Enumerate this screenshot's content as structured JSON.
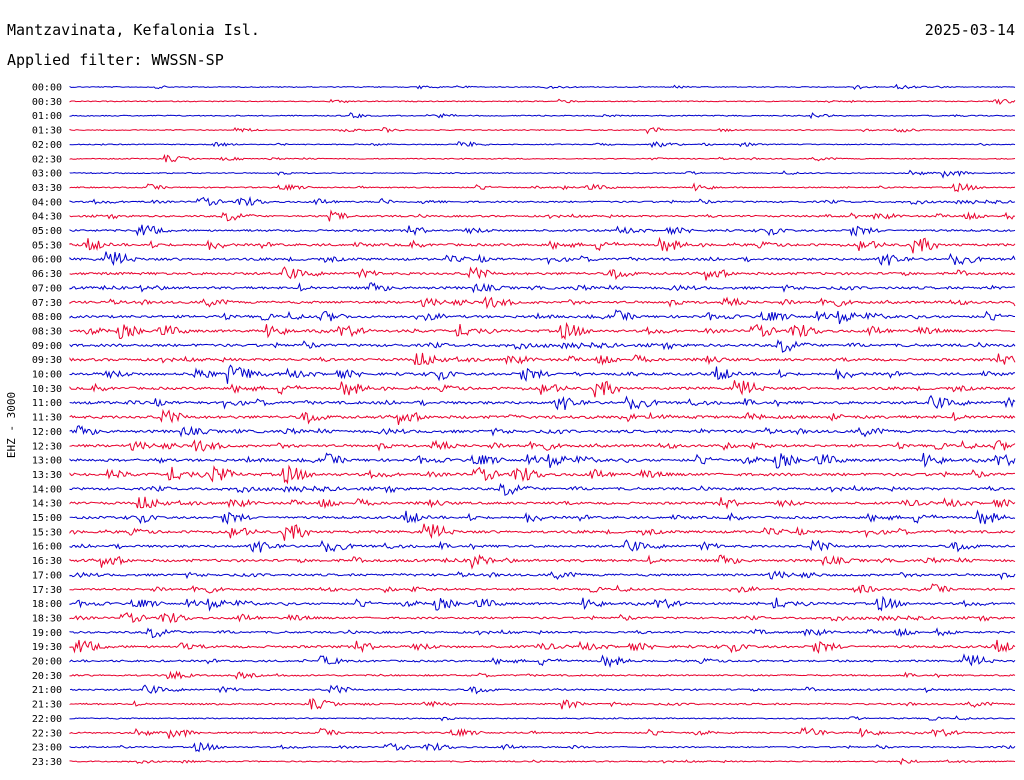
{
  "header": {
    "station": "Mantzavinata, Kefalonia Isl.",
    "date": "2025-03-14",
    "filter": "Applied filter: WWSSN-SP"
  },
  "chart_data": {
    "type": "line",
    "title": "Mantzavinata, Kefalonia Isl.",
    "ylabel": "EHZ - 3000",
    "colors": {
      "even": "#0000cc",
      "odd": "#e8002d"
    },
    "rows": [
      {
        "label": "00:00",
        "level": 0.05
      },
      {
        "label": "00:30",
        "level": 0.05
      },
      {
        "label": "01:00",
        "level": 0.1
      },
      {
        "label": "01:30",
        "level": 0.05
      },
      {
        "label": "02:00",
        "level": 0.05
      },
      {
        "label": "02:30",
        "level": 0.05
      },
      {
        "label": "03:00",
        "level": 0.1
      },
      {
        "label": "03:30",
        "level": 0.15
      },
      {
        "label": "04:00",
        "level": 0.3
      },
      {
        "label": "04:30",
        "level": 0.35
      },
      {
        "label": "05:00",
        "level": 0.45
      },
      {
        "label": "05:30",
        "level": 0.6
      },
      {
        "label": "06:00",
        "level": 0.6
      },
      {
        "label": "06:30",
        "level": 0.65
      },
      {
        "label": "07:00",
        "level": 0.65
      },
      {
        "label": "07:30",
        "level": 0.6
      },
      {
        "label": "08:00",
        "level": 0.65
      },
      {
        "label": "08:30",
        "level": 0.65
      },
      {
        "label": "09:00",
        "level": 0.7
      },
      {
        "label": "09:30",
        "level": 0.65
      },
      {
        "label": "10:00",
        "level": 0.7
      },
      {
        "label": "10:30",
        "level": 0.65
      },
      {
        "label": "11:00",
        "level": 0.75
      },
      {
        "label": "11:30",
        "level": 0.8
      },
      {
        "label": "12:00",
        "level": 0.75
      },
      {
        "label": "12:30",
        "level": 0.65
      },
      {
        "label": "13:00",
        "level": 0.7
      },
      {
        "label": "13:30",
        "level": 0.75
      },
      {
        "label": "14:00",
        "level": 0.65
      },
      {
        "label": "14:30",
        "level": 0.6
      },
      {
        "label": "15:00",
        "level": 0.6
      },
      {
        "label": "15:30",
        "level": 0.65
      },
      {
        "label": "16:00",
        "level": 0.6
      },
      {
        "label": "16:30",
        "level": 0.7
      },
      {
        "label": "17:00",
        "level": 0.55
      },
      {
        "label": "17:30",
        "level": 0.45
      },
      {
        "label": "18:00",
        "level": 0.5
      },
      {
        "label": "18:30",
        "level": 0.45
      },
      {
        "label": "19:00",
        "level": 0.45
      },
      {
        "label": "19:30",
        "level": 0.6
      },
      {
        "label": "20:00",
        "level": 0.4
      },
      {
        "label": "20:30",
        "level": 0.3
      },
      {
        "label": "21:00",
        "level": 0.35
      },
      {
        "label": "21:30",
        "level": 0.3
      },
      {
        "label": "22:00",
        "level": 0.15
      },
      {
        "label": "22:30",
        "level": 0.3
      },
      {
        "label": "23:00",
        "level": 0.2
      },
      {
        "label": "23:30",
        "level": 0.15
      }
    ]
  }
}
